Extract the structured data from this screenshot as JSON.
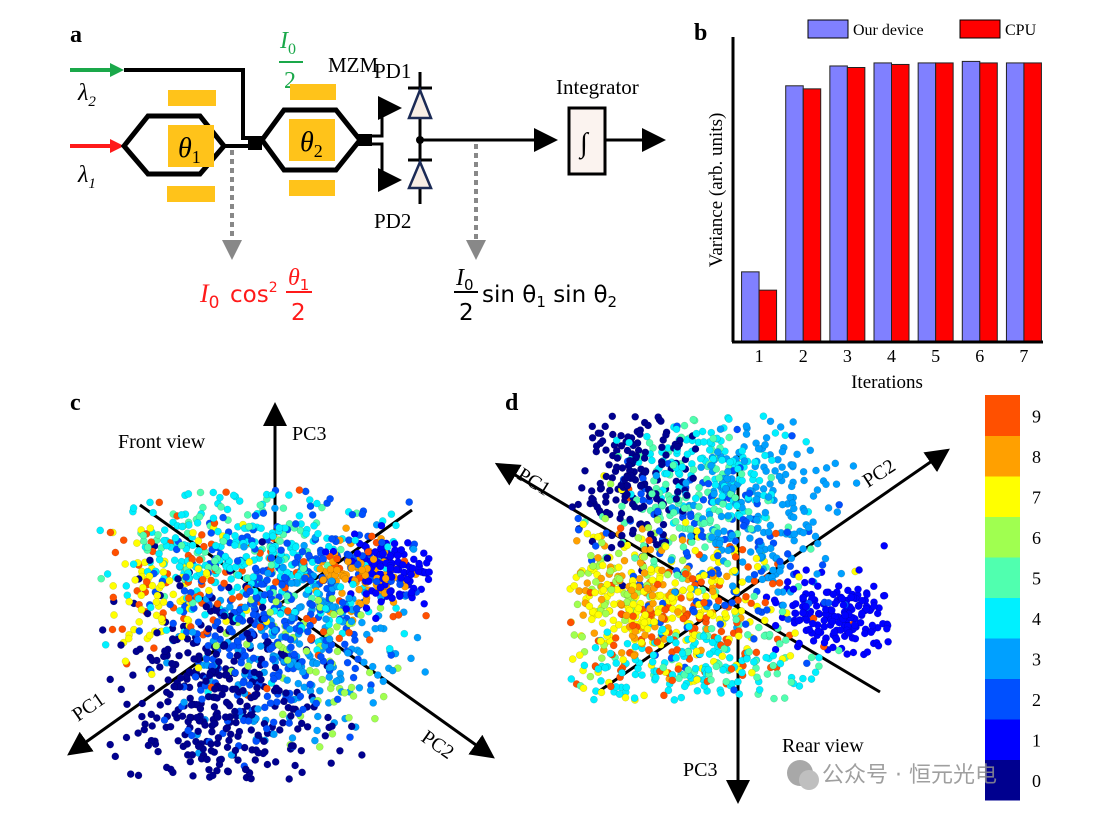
{
  "panel_a": {
    "label": "a",
    "lambda2": "λ",
    "lambda2_sub": "2",
    "lambda1": "λ",
    "lambda1_sub": "1",
    "theta1": "θ",
    "theta1_sub": "1",
    "theta2": "θ",
    "theta2_sub": "2",
    "split_num": "I",
    "split_num_sub": "0",
    "split_den": "2",
    "mzm": "MZM",
    "pd1": "PD1",
    "pd2": "PD2",
    "integrator": "Integrator",
    "integral_symbol": "∫",
    "eq1_I": "I",
    "eq1_sub": "0",
    "eq1_cos": "cos",
    "eq1_sup": "2",
    "eq1_num": "θ",
    "eq1_num_sub": "1",
    "eq1_den": "2",
    "eq2_num": "I",
    "eq2_num_sub": "0",
    "eq2_den": "2",
    "eq2_body": "sin θ",
    "eq2_sub1": "1",
    "eq2_body2": " sin θ",
    "eq2_sub2": "2",
    "colors": {
      "green": "#1aa84a",
      "red": "#ff1a1a",
      "gold": "#ffc31a"
    }
  },
  "chart_data": {
    "type": "bar",
    "label": "b",
    "title": "",
    "xlabel": "Iterations",
    "ylabel": "Variance (arb. units)",
    "categories": [
      "1",
      "2",
      "3",
      "4",
      "5",
      "6",
      "7"
    ],
    "ylim": [
      0,
      1
    ],
    "legend_position": "top-right",
    "series": [
      {
        "name": "Our device",
        "color": "#8080ff",
        "values": [
          0.23,
          0.84,
          0.905,
          0.915,
          0.915,
          0.92,
          0.915
        ]
      },
      {
        "name": "CPU",
        "color": "#ff0000",
        "values": [
          0.17,
          0.83,
          0.9,
          0.91,
          0.915,
          0.915,
          0.915
        ]
      }
    ]
  },
  "panel_c": {
    "label": "c",
    "view": "Front view",
    "pc1": "PC1",
    "pc2": "PC2",
    "pc3": "PC3"
  },
  "panel_d": {
    "label": "d",
    "view": "Rear view",
    "pc1": "PC1",
    "pc2": "PC2",
    "pc3": "PC3"
  },
  "colorbar": {
    "ticks": [
      "0",
      "1",
      "2",
      "3",
      "4",
      "5",
      "6",
      "7",
      "8",
      "9"
    ],
    "colors": [
      "#00008f",
      "#0000ff",
      "#0050ff",
      "#00a0ff",
      "#00f0ff",
      "#50ffaf",
      "#a0ff50",
      "#ffff00",
      "#ffa000",
      "#ff5000"
    ]
  },
  "watermark": "公众号 · 恒元光电"
}
